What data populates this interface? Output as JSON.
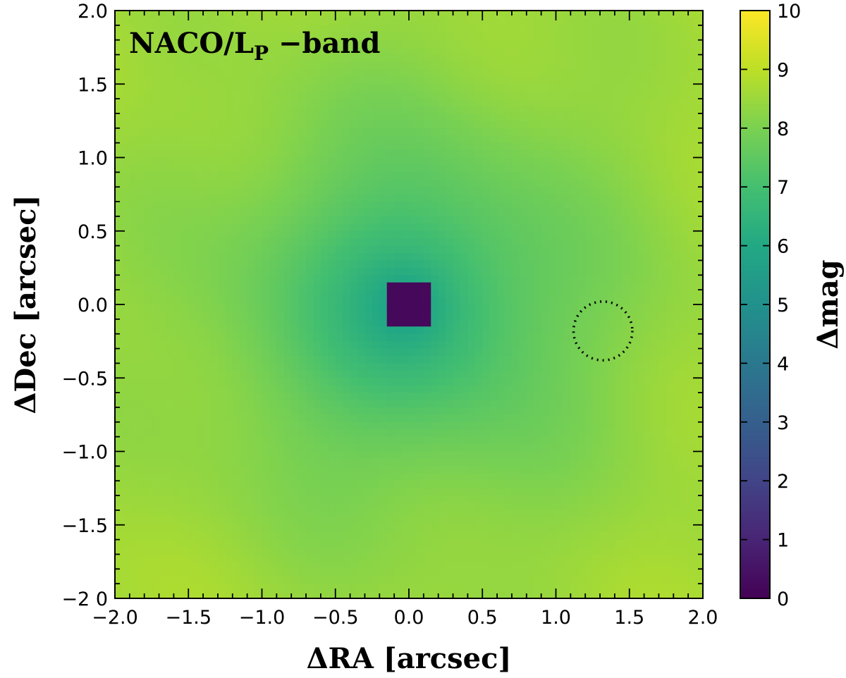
{
  "chart_data": {
    "type": "heatmap",
    "title": {
      "main": "NACO/L",
      "subscript": "P",
      "suffix": " −band"
    },
    "xlabel": "ΔRA [arcsec]",
    "ylabel": "ΔDec [arcsec]",
    "colorbar_label": "Δmag",
    "xlim": [
      -2.0,
      2.0
    ],
    "ylim": [
      -2.0,
      2.0
    ],
    "x_ticks": [
      -2.0,
      -1.5,
      -1.0,
      -0.5,
      0.0,
      0.5,
      1.0,
      1.5,
      2.0
    ],
    "x_tick_labels": [
      "−2.0",
      "−1.5",
      "−1.0",
      "−0.5",
      "0.0",
      "0.5",
      "1.0",
      "1.5",
      "2.0"
    ],
    "y_ticks": [
      2.0,
      1.5,
      1.0,
      0.5,
      0.0,
      -0.5,
      -1.0,
      -1.5,
      -2.0
    ],
    "y_tick_labels": [
      "2.0",
      "1.5",
      "1.0",
      "0.5",
      "0.0",
      "−0.5",
      "−1.0",
      "−1.5",
      "−2 0"
    ],
    "colorbar": {
      "colormap": "viridis",
      "range": [
        0,
        10
      ],
      "ticks": [
        0,
        1,
        2,
        3,
        4,
        5,
        6,
        7,
        8,
        9,
        10
      ],
      "tick_labels": [
        "0",
        "1",
        "2",
        "3",
        "4",
        "5",
        "6",
        "7",
        "8",
        "9",
        "10"
      ]
    },
    "map_model": {
      "center": [
        0.0,
        0.0
      ],
      "masked_region_half_width": 0.17,
      "masked_value": 0.2,
      "core_value": 5.0,
      "min_contrast_near_center": 5.4,
      "max_contrast_at_edge": 8.8
    },
    "marked_position": {
      "x": 1.32,
      "y": -0.18,
      "radius": 0.2,
      "style": "dotted circle"
    },
    "grid": false,
    "legend": "none"
  }
}
